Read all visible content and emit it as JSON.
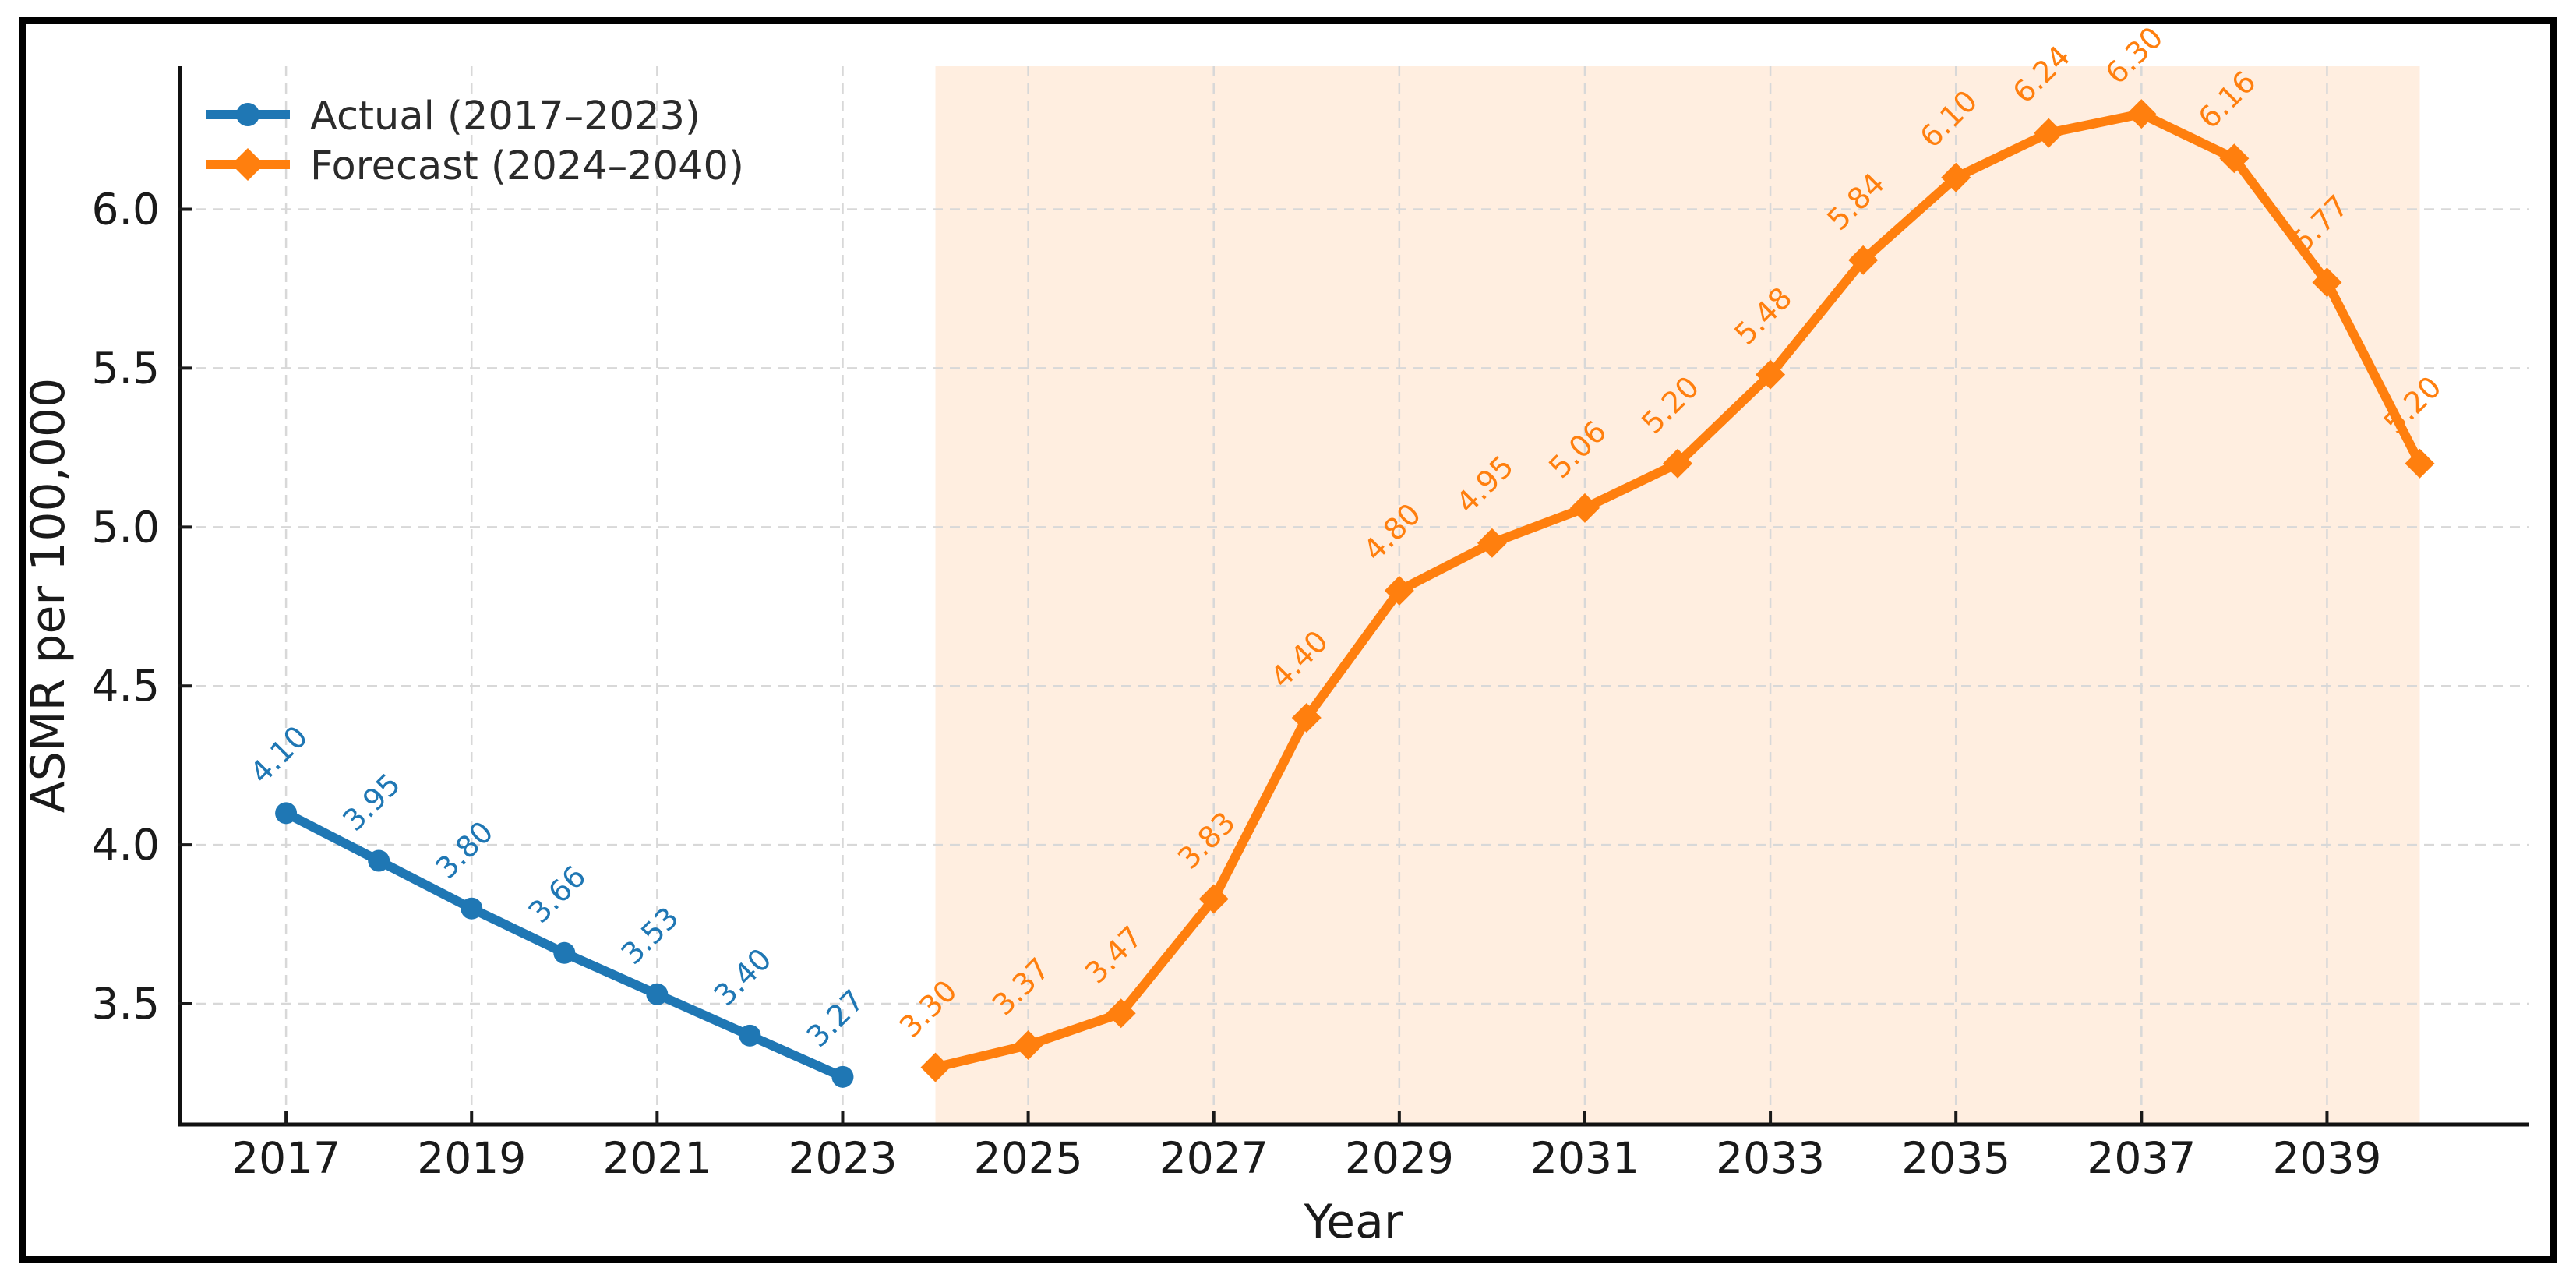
{
  "chart_data": {
    "type": "line",
    "title": "",
    "xlabel": "Year",
    "ylabel": "ASMR per 100,000",
    "x_ticks": [
      2017,
      2019,
      2021,
      2023,
      2025,
      2027,
      2029,
      2031,
      2033,
      2035,
      2037,
      2039
    ],
    "y_ticks": [
      3.5,
      4.0,
      4.5,
      5.0,
      5.5,
      6.0
    ],
    "xlim": [
      2015.84,
      2041.18
    ],
    "ylim": [
      3.12,
      6.45
    ],
    "grid": true,
    "legend_position": "upper-left",
    "series": [
      {
        "name": "Actual (2017–2023)",
        "color": "#1f77b4",
        "marker": "circle",
        "x": [
          2017,
          2018,
          2019,
          2020,
          2021,
          2022,
          2023
        ],
        "values": [
          4.1,
          3.95,
          3.8,
          3.66,
          3.53,
          3.4,
          3.27
        ]
      },
      {
        "name": "Forecast (2024–2040)",
        "color": "#ff7f0e",
        "marker": "diamond",
        "x": [
          2024,
          2025,
          2026,
          2027,
          2028,
          2029,
          2030,
          2031,
          2032,
          2033,
          2034,
          2035,
          2036,
          2037,
          2038,
          2039,
          2040
        ],
        "values": [
          3.3,
          3.37,
          3.47,
          3.83,
          4.4,
          4.8,
          4.95,
          5.06,
          5.2,
          5.48,
          5.84,
          6.1,
          6.24,
          6.3,
          6.16,
          5.77,
          5.2
        ]
      }
    ],
    "forecast_band": {
      "x_start": 2024,
      "x_end": 2040,
      "color": "#ff7f0e",
      "opacity": 0.13
    },
    "styles": {
      "grid_color": "#d8d8d8",
      "spine_color": "#111111",
      "tick_color": "#1a1a1a",
      "text_color": "#1a1a1a",
      "label_decimals": 2
    }
  }
}
